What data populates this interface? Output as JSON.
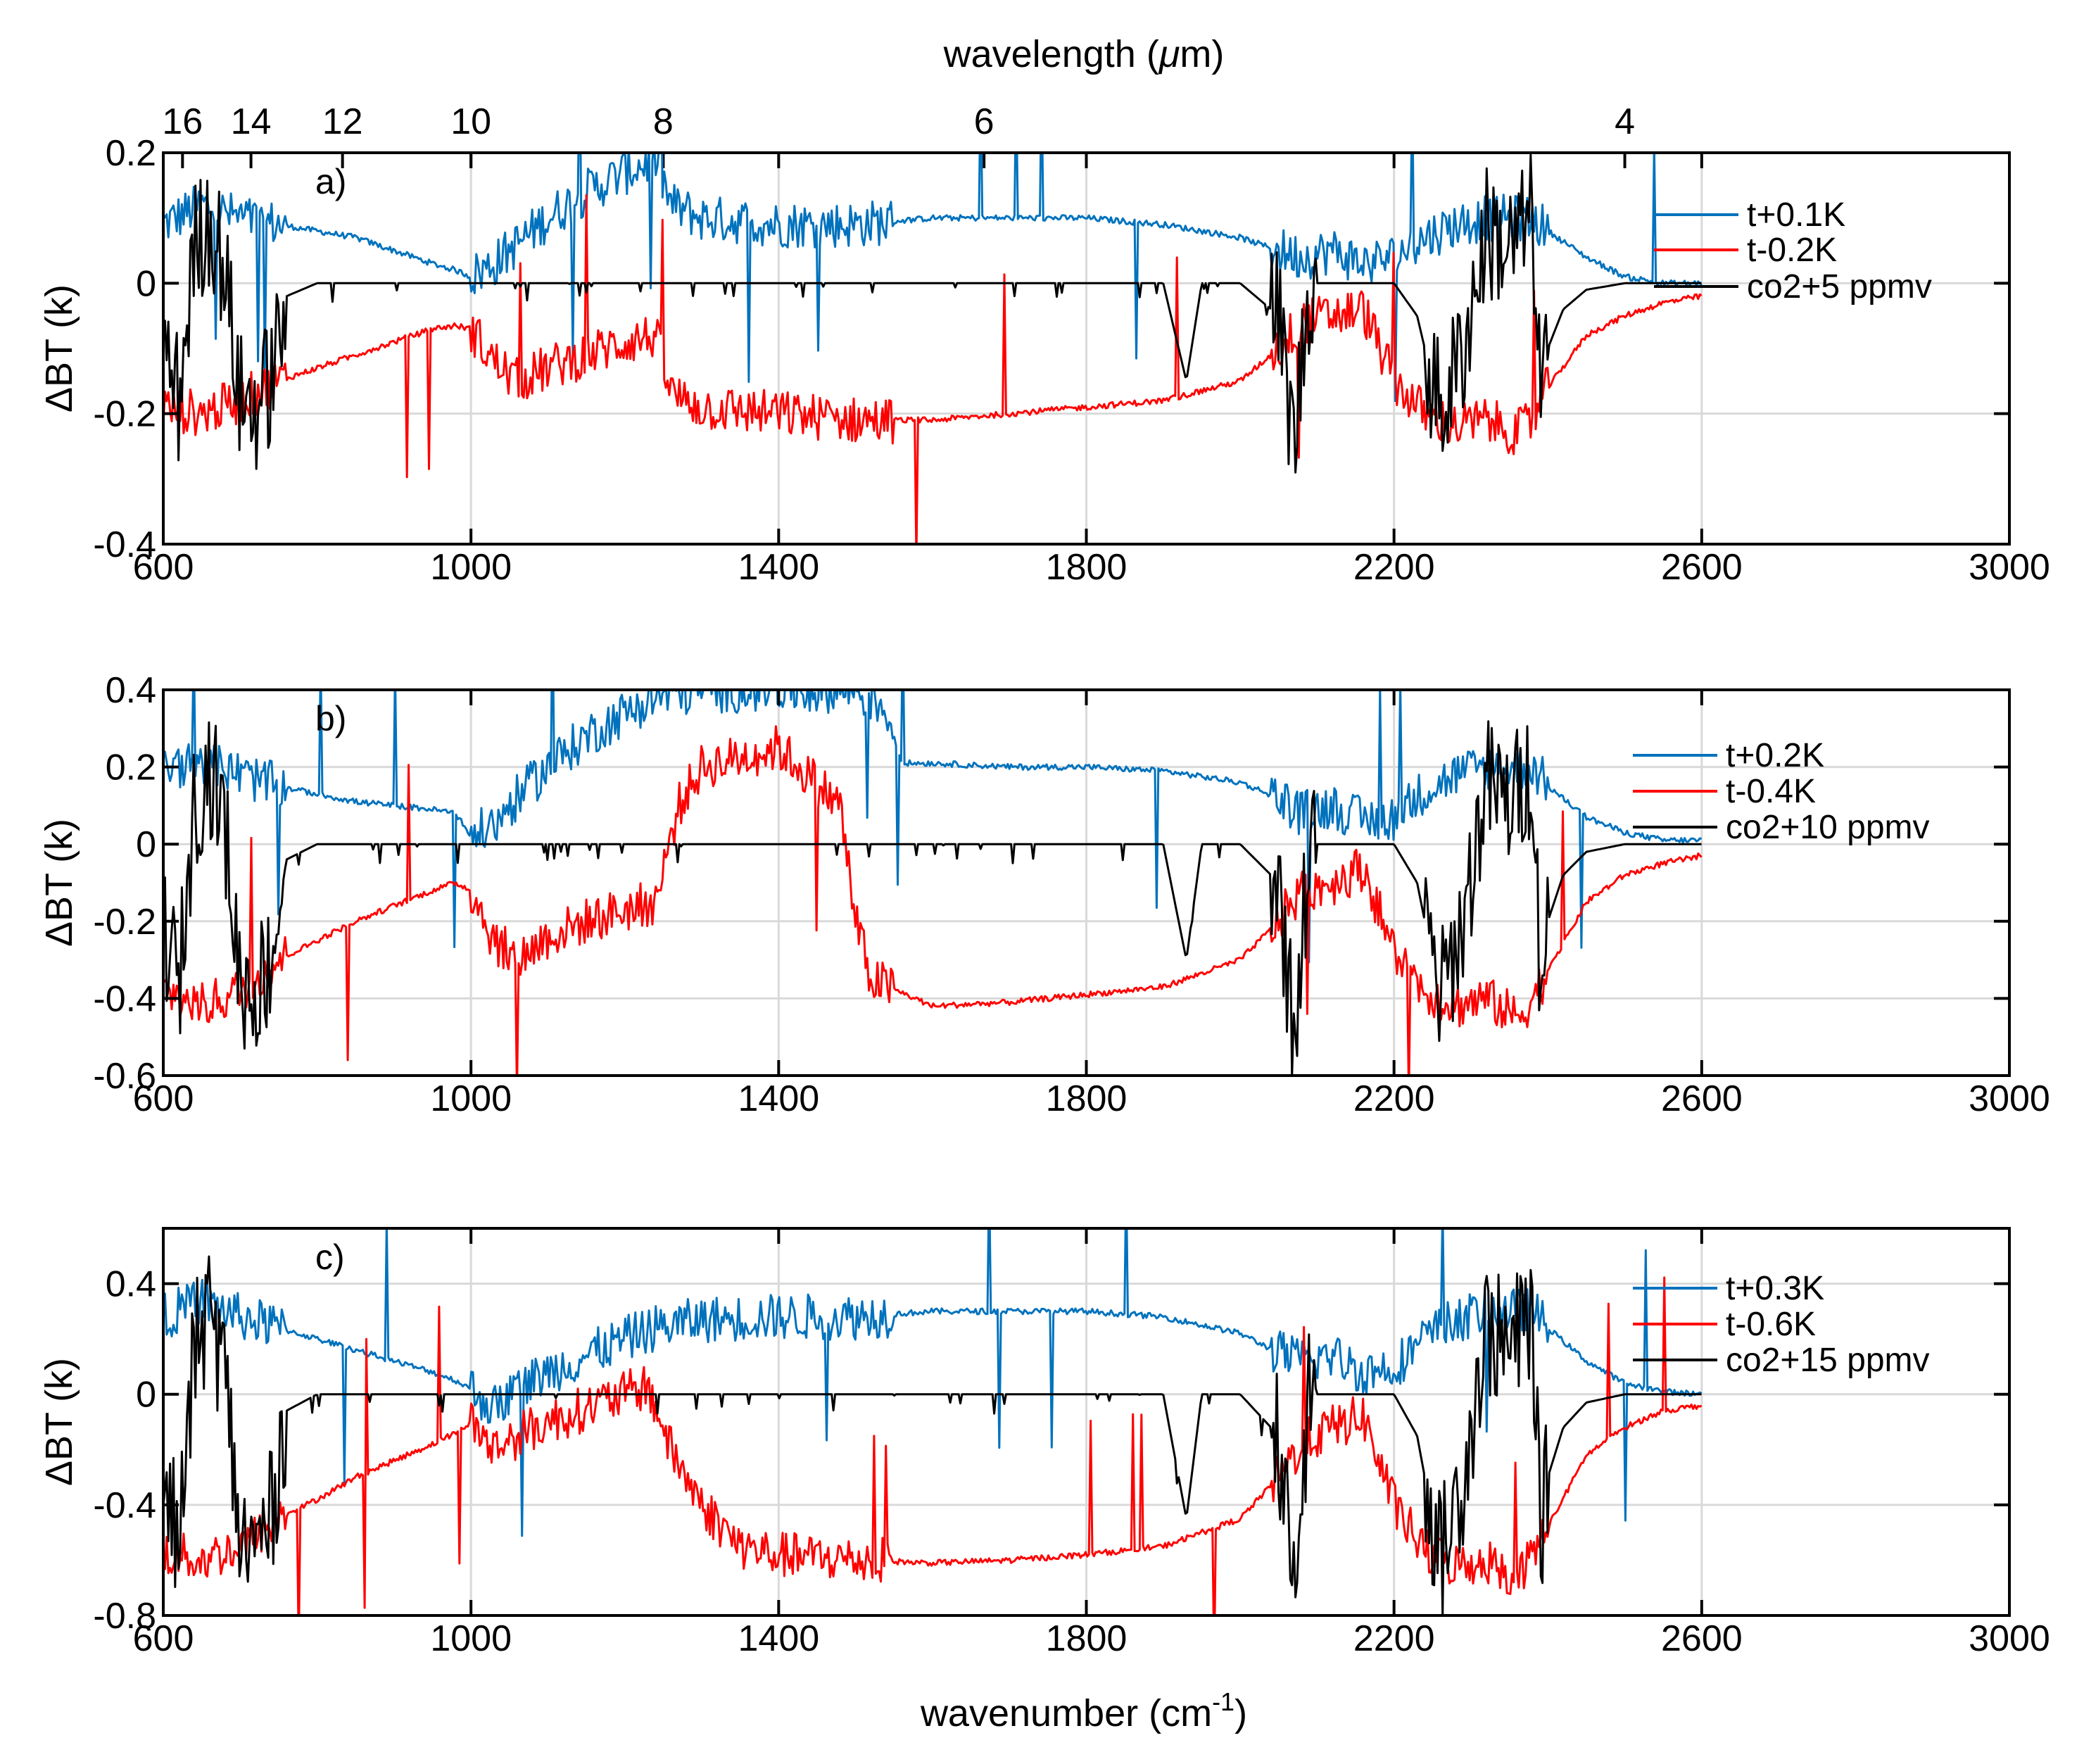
{
  "figure": {
    "top_axis_title": "wavelength (",
    "top_axis_unit_mu": "μ",
    "top_axis_unit_rest": "m)",
    "bottom_axis_title": "wavenumber (cm",
    "bottom_axis_exp": "-1",
    "bottom_axis_close": ")",
    "ylabel": "ΔBT (k)",
    "top_ticks": [
      {
        "label": "16",
        "wavenumber": 625
      },
      {
        "label": "14",
        "wavenumber": 714
      },
      {
        "label": "12",
        "wavenumber": 833
      },
      {
        "label": "10",
        "wavenumber": 1000
      },
      {
        "label": "8",
        "wavenumber": 1250
      },
      {
        "label": "6",
        "wavenumber": 1667
      },
      {
        "label": "4",
        "wavenumber": 2500
      }
    ]
  },
  "colors": {
    "t_plus": "#0072bd",
    "t_minus": "#ff0000",
    "co2": "#000000"
  },
  "chart_data": [
    {
      "type": "line",
      "panel_label": "a)",
      "xlim": [
        600,
        3000
      ],
      "ylim": [
        -0.4,
        0.2
      ],
      "xticks": [
        600,
        1000,
        1400,
        1800,
        2200,
        2600,
        3000
      ],
      "xtick_labels": [
        "600",
        "1000",
        "1400",
        "1800",
        "2200",
        "2600",
        "3000"
      ],
      "yticks": [
        -0.4,
        -0.2,
        0,
        0.2
      ],
      "ytick_labels": [
        "-0.4",
        "-0.2",
        "0",
        "0.2"
      ],
      "xlabel": "wavenumber (cm-1)",
      "ylabel": "ΔBT (k)",
      "legend_position": "upper-right",
      "series": [
        {
          "name": "t+0.1K",
          "color": "#0072bd",
          "x": [
            600,
            650,
            700,
            750,
            800,
            850,
            900,
            950,
            980,
            1000,
            1030,
            1060,
            1100,
            1150,
            1200,
            1240,
            1260,
            1300,
            1400,
            1500,
            1600,
            1700,
            1800,
            1900,
            2000,
            2050,
            2080,
            2120,
            2160,
            2200,
            2240,
            2280,
            2320,
            2360,
            2380,
            2400,
            2450,
            2500,
            2550,
            2600
          ],
          "y": [
            0.09,
            0.12,
            0.1,
            0.09,
            0.08,
            0.07,
            0.05,
            0.03,
            0.02,
            0.01,
            0.03,
            0.06,
            0.1,
            0.14,
            0.17,
            0.19,
            0.12,
            0.1,
            0.09,
            0.09,
            0.1,
            0.1,
            0.1,
            0.09,
            0.07,
            0.05,
            0.04,
            0.05,
            0.03,
            0.04,
            0.07,
            0.09,
            0.1,
            0.1,
            0.1,
            0.08,
            0.04,
            0.01,
            0.0,
            0.0
          ]
        },
        {
          "name": "t-0.2K",
          "color": "#ff0000",
          "x": [
            600,
            650,
            700,
            750,
            800,
            850,
            900,
            950,
            980,
            1000,
            1030,
            1060,
            1100,
            1150,
            1200,
            1240,
            1260,
            1300,
            1400,
            1500,
            1600,
            1700,
            1800,
            1900,
            2000,
            2050,
            2080,
            2120,
            2160,
            2200,
            2240,
            2280,
            2320,
            2360,
            2380,
            2400,
            2450,
            2500,
            2550,
            2600
          ],
          "y": [
            -0.19,
            -0.2,
            -0.18,
            -0.15,
            -0.13,
            -0.11,
            -0.09,
            -0.07,
            -0.065,
            -0.07,
            -0.12,
            -0.15,
            -0.13,
            -0.11,
            -0.09,
            -0.08,
            -0.17,
            -0.19,
            -0.2,
            -0.21,
            -0.21,
            -0.2,
            -0.19,
            -0.18,
            -0.15,
            -0.1,
            -0.06,
            -0.05,
            -0.04,
            -0.15,
            -0.2,
            -0.22,
            -0.21,
            -0.23,
            -0.21,
            -0.16,
            -0.08,
            -0.05,
            -0.03,
            -0.02
          ]
        },
        {
          "name": "co2+5 ppmv",
          "color": "#000000",
          "x": [
            600,
            620,
            640,
            660,
            680,
            700,
            720,
            740,
            760,
            800,
            900,
            1000,
            1100,
            1200,
            1300,
            1400,
            1800,
            1900,
            1930,
            1950,
            2000,
            2050,
            2070,
            2090,
            2150,
            2200,
            2230,
            2260,
            2290,
            2320,
            2350,
            2380,
            2390,
            2400,
            2420,
            2450,
            2500,
            2600
          ],
          "y": [
            -0.1,
            -0.18,
            0.05,
            0.1,
            0.02,
            -0.18,
            -0.19,
            -0.15,
            -0.02,
            0.0,
            0.0,
            0.0,
            0.0,
            0.0,
            0.0,
            0.0,
            0.0,
            0.0,
            -0.15,
            0.0,
            0.0,
            -0.05,
            -0.25,
            0.0,
            0.0,
            0.0,
            -0.05,
            -0.2,
            -0.1,
            0.08,
            0.05,
            0.1,
            -0.17,
            -0.1,
            -0.04,
            -0.01,
            0.0,
            0.0
          ]
        }
      ]
    },
    {
      "type": "line",
      "panel_label": "b)",
      "xlim": [
        600,
        3000
      ],
      "ylim": [
        -0.6,
        0.4
      ],
      "xticks": [
        600,
        1000,
        1400,
        1800,
        2200,
        2600,
        3000
      ],
      "xtick_labels": [
        "600",
        "1000",
        "1400",
        "1800",
        "2200",
        "2600",
        "3000"
      ],
      "yticks": [
        -0.6,
        -0.4,
        -0.2,
        0,
        0.2,
        0.4
      ],
      "ytick_labels": [
        "-0.6",
        "-0.4",
        "-0.2",
        "0",
        "0.2",
        "0.4"
      ],
      "xlabel": "wavenumber (cm-1)",
      "ylabel": "ΔBT (k)",
      "legend_position": "right",
      "series": [
        {
          "name": "t+0.2K",
          "color": "#0072bd",
          "x": [
            600,
            650,
            700,
            750,
            800,
            850,
            900,
            950,
            980,
            1000,
            1030,
            1060,
            1100,
            1150,
            1200,
            1240,
            1300,
            1400,
            1500,
            1540,
            1560,
            1600,
            1700,
            1800,
            1900,
            2000,
            2050,
            2080,
            2120,
            2160,
            2200,
            2240,
            2280,
            2320,
            2360,
            2380,
            2400,
            2450,
            2500,
            2550,
            2600
          ],
          "y": [
            0.19,
            0.22,
            0.18,
            0.15,
            0.13,
            0.11,
            0.1,
            0.09,
            0.08,
            0.02,
            0.05,
            0.12,
            0.2,
            0.28,
            0.34,
            0.38,
            0.4,
            0.4,
            0.4,
            0.35,
            0.21,
            0.21,
            0.2,
            0.2,
            0.19,
            0.16,
            0.12,
            0.08,
            0.1,
            0.06,
            0.07,
            0.14,
            0.18,
            0.2,
            0.2,
            0.2,
            0.15,
            0.07,
            0.03,
            0.01,
            0.01
          ]
        },
        {
          "name": "t-0.4K",
          "color": "#ff0000",
          "x": [
            600,
            650,
            700,
            750,
            800,
            850,
            900,
            950,
            980,
            1000,
            1030,
            1060,
            1100,
            1150,
            1200,
            1240,
            1270,
            1300,
            1400,
            1480,
            1500,
            1520,
            1600,
            1700,
            1800,
            1900,
            2000,
            2050,
            2080,
            2120,
            2160,
            2200,
            2240,
            2280,
            2320,
            2360,
            2380,
            2400,
            2450,
            2500,
            2550,
            2600
          ],
          "y": [
            -0.38,
            -0.42,
            -0.38,
            -0.3,
            -0.25,
            -0.2,
            -0.16,
            -0.12,
            -0.1,
            -0.12,
            -0.25,
            -0.3,
            -0.24,
            -0.2,
            -0.17,
            -0.15,
            0.1,
            0.2,
            0.25,
            0.1,
            -0.2,
            -0.35,
            -0.42,
            -0.41,
            -0.39,
            -0.37,
            -0.3,
            -0.2,
            -0.12,
            -0.1,
            -0.06,
            -0.28,
            -0.38,
            -0.42,
            -0.4,
            -0.45,
            -0.4,
            -0.33,
            -0.15,
            -0.08,
            -0.05,
            -0.03
          ]
        },
        {
          "name": "co2+10 ppmv",
          "color": "#000000",
          "x": [
            600,
            620,
            640,
            660,
            680,
            700,
            720,
            740,
            760,
            800,
            900,
            1000,
            1100,
            1200,
            1300,
            1400,
            1800,
            1900,
            1930,
            1950,
            2000,
            2050,
            2070,
            2090,
            2150,
            2200,
            2230,
            2260,
            2290,
            2320,
            2350,
            2380,
            2390,
            2400,
            2420,
            2450,
            2500,
            2600
          ],
          "y": [
            -0.2,
            -0.38,
            0.1,
            0.2,
            0.05,
            -0.36,
            -0.38,
            -0.3,
            -0.04,
            0.0,
            0.0,
            0.0,
            0.0,
            0.0,
            0.0,
            0.0,
            0.0,
            0.0,
            -0.3,
            0.0,
            0.0,
            -0.1,
            -0.5,
            0.0,
            0.0,
            0.0,
            -0.1,
            -0.4,
            -0.2,
            0.16,
            0.1,
            0.2,
            -0.34,
            -0.2,
            -0.08,
            -0.02,
            0.0,
            0.0
          ]
        }
      ]
    },
    {
      "type": "line",
      "panel_label": "c)",
      "xlim": [
        600,
        3000
      ],
      "ylim": [
        -0.8,
        0.6
      ],
      "xticks": [
        600,
        1000,
        1400,
        1800,
        2200,
        2600,
        3000
      ],
      "xtick_labels": [
        "600",
        "1000",
        "1400",
        "1800",
        "2200",
        "2600",
        "3000"
      ],
      "yticks": [
        -0.8,
        -0.4,
        0,
        0.4
      ],
      "ytick_labels": [
        "-0.8",
        "-0.4",
        "0",
        "0.4"
      ],
      "xlabel": "wavenumber (cm-1)",
      "ylabel": "ΔBT (k)",
      "legend_position": "right",
      "series": [
        {
          "name": "t+0.3K",
          "color": "#0072bd",
          "x": [
            600,
            650,
            700,
            750,
            800,
            850,
            900,
            950,
            980,
            1000,
            1030,
            1060,
            1100,
            1150,
            1200,
            1240,
            1260,
            1300,
            1400,
            1500,
            1600,
            1700,
            1800,
            1900,
            2000,
            2050,
            2080,
            2120,
            2160,
            2200,
            2240,
            2280,
            2320,
            2360,
            2380,
            2400,
            2450,
            2500,
            2550,
            2600
          ],
          "y": [
            0.28,
            0.34,
            0.28,
            0.24,
            0.2,
            0.16,
            0.12,
            0.08,
            0.05,
            0.02,
            -0.05,
            0.02,
            0.08,
            0.14,
            0.2,
            0.24,
            0.25,
            0.27,
            0.28,
            0.28,
            0.3,
            0.3,
            0.3,
            0.28,
            0.22,
            0.15,
            0.12,
            0.14,
            0.08,
            0.1,
            0.2,
            0.27,
            0.3,
            0.3,
            0.3,
            0.24,
            0.12,
            0.04,
            0.01,
            0.0
          ]
        },
        {
          "name": "t-0.6K",
          "color": "#ff0000",
          "x": [
            600,
            650,
            700,
            750,
            800,
            850,
            900,
            950,
            980,
            1000,
            1030,
            1060,
            1100,
            1150,
            1200,
            1230,
            1260,
            1300,
            1350,
            1400,
            1500,
            1600,
            1700,
            1800,
            1900,
            2000,
            2050,
            2080,
            2120,
            2160,
            2200,
            2240,
            2280,
            2320,
            2360,
            2380,
            2400,
            2450,
            2500,
            2550,
            2600
          ],
          "y": [
            -0.57,
            -0.6,
            -0.55,
            -0.45,
            -0.38,
            -0.3,
            -0.24,
            -0.18,
            -0.14,
            -0.1,
            -0.2,
            -0.15,
            -0.1,
            -0.05,
            0.0,
            0.03,
            -0.2,
            -0.4,
            -0.55,
            -0.58,
            -0.6,
            -0.61,
            -0.6,
            -0.58,
            -0.55,
            -0.45,
            -0.3,
            -0.18,
            -0.12,
            -0.08,
            -0.4,
            -0.57,
            -0.62,
            -0.6,
            -0.66,
            -0.58,
            -0.48,
            -0.22,
            -0.12,
            -0.06,
            -0.04
          ]
        },
        {
          "name": "co2+15 ppmv",
          "color": "#000000",
          "x": [
            600,
            620,
            640,
            660,
            680,
            700,
            720,
            740,
            760,
            800,
            900,
            1000,
            1100,
            1200,
            1300,
            1400,
            1800,
            1900,
            1930,
            1950,
            2000,
            2050,
            2070,
            2090,
            2150,
            2200,
            2230,
            2260,
            2290,
            2320,
            2350,
            2380,
            2390,
            2400,
            2420,
            2450,
            2500,
            2600
          ],
          "y": [
            -0.3,
            -0.56,
            0.15,
            0.3,
            0.08,
            -0.54,
            -0.56,
            -0.44,
            -0.06,
            0.0,
            0.0,
            0.0,
            0.0,
            0.0,
            0.0,
            0.0,
            0.0,
            0.0,
            -0.45,
            0.0,
            0.0,
            -0.15,
            -0.75,
            0.0,
            0.0,
            0.0,
            -0.15,
            -0.6,
            -0.3,
            0.24,
            0.15,
            0.3,
            -0.51,
            -0.3,
            -0.12,
            -0.03,
            0.0,
            0.0
          ]
        }
      ]
    }
  ]
}
